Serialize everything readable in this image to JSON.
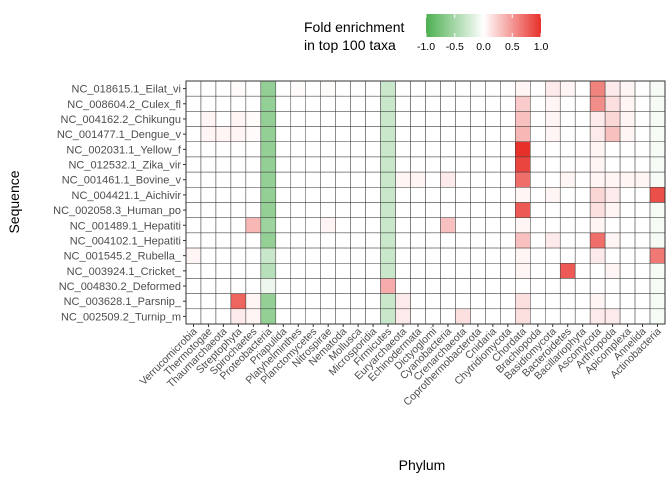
{
  "chart_data": {
    "type": "heatmap",
    "xlabel": "Phylum",
    "ylabel": "Sequence",
    "legend": {
      "title_lines": [
        "Fold enrichment",
        "in top 100 taxa"
      ],
      "position": "top",
      "range": [
        -1.0,
        1.0
      ],
      "ticks": [
        "-1.0",
        "-0.5",
        "0.0",
        "0.5",
        "1.0"
      ],
      "colors": {
        "low": "#4caf50",
        "mid": "#ffffff",
        "high": "#e8302a"
      }
    },
    "x": [
      "Verrucomicrobia",
      "Thermotogae",
      "Thaumarchaeota",
      "Streptophyta",
      "Spirochaetes",
      "Proteobacteria",
      "Priapulida",
      "Platyhelminthes",
      "Planctomycetes",
      "Nitrospirae",
      "Nematoda",
      "Mollusca",
      "Microsporidia",
      "Firmicutes",
      "Euryarchaeota",
      "Echinodermata",
      "Dictyoglomi",
      "Cyanobacteria",
      "Crenarchaeota",
      "Coprothermobacterota",
      "Cnidaria",
      "Chytridiomycota",
      "Chordata",
      "Brachiopoda",
      "Basidiomycota",
      "Bacteroidetes",
      "Bacillariophyta",
      "Ascomycota",
      "Arthropoda",
      "Apicomplexa",
      "Annelida",
      "Actinobacteria"
    ],
    "y": [
      "NC_018615.1_Eilat_vi",
      "NC_008604.2_Culex_fl",
      "NC_004162.2_Chikungu",
      "NC_001477.1_Dengue_v",
      "NC_002031.1_Yellow_f",
      "NC_012532.1_Zika_vir",
      "NC_001461.1_Bovine_v",
      "NC_004421.1_Aichivir",
      "NC_002058.3_Human_po",
      "NC_001489.1_Hepatiti",
      "NC_004102.1_Hepatiti",
      "NC_001545.2_Rubella_",
      "NC_003924.1_Cricket_",
      "NC_004830.2_Deformed",
      "NC_003628.1_Parsnip_",
      "NC_002509.2_Turnip_m"
    ],
    "values": [
      [
        0.0,
        0.0,
        0.0,
        0.02,
        0.0,
        -0.6,
        0.0,
        0.02,
        0.0,
        0.02,
        0.0,
        0.0,
        0.0,
        -0.3,
        0.0,
        0.0,
        0.0,
        0.0,
        0.0,
        0.0,
        0.0,
        0.0,
        0.05,
        0.0,
        0.1,
        0.05,
        0.0,
        0.6,
        0.1,
        0.05,
        0.0,
        -0.05
      ],
      [
        0.0,
        0.0,
        0.0,
        0.0,
        0.0,
        -0.6,
        0.0,
        0.0,
        0.0,
        0.0,
        0.0,
        0.0,
        0.0,
        -0.3,
        0.0,
        0.0,
        0.0,
        0.0,
        0.0,
        0.0,
        0.0,
        0.0,
        0.25,
        0.0,
        0.05,
        0.0,
        0.0,
        0.55,
        0.15,
        0.05,
        0.0,
        -0.05
      ],
      [
        0.0,
        0.05,
        0.0,
        0.05,
        0.02,
        -0.6,
        0.0,
        0.0,
        0.0,
        0.0,
        0.0,
        0.0,
        0.0,
        -0.3,
        0.0,
        0.0,
        0.0,
        0.0,
        0.0,
        0.0,
        0.0,
        0.0,
        0.3,
        0.0,
        0.05,
        0.0,
        0.0,
        0.1,
        0.2,
        0.05,
        0.0,
        -0.05
      ],
      [
        0.0,
        0.05,
        0.05,
        0.05,
        0.02,
        -0.6,
        0.0,
        0.0,
        0.0,
        0.0,
        0.0,
        0.0,
        0.0,
        -0.3,
        0.0,
        0.0,
        0.0,
        0.0,
        0.0,
        0.0,
        0.0,
        0.0,
        0.35,
        0.0,
        0.05,
        0.0,
        0.0,
        0.1,
        0.3,
        0.05,
        0.0,
        -0.05
      ],
      [
        0.0,
        0.0,
        0.0,
        0.0,
        0.0,
        -0.6,
        0.0,
        0.0,
        0.0,
        0.0,
        0.0,
        0.0,
        0.0,
        -0.3,
        0.0,
        0.0,
        0.0,
        0.0,
        0.0,
        0.0,
        0.0,
        0.0,
        1.0,
        0.0,
        0.0,
        0.0,
        0.0,
        0.05,
        0.0,
        0.0,
        0.0,
        -0.05
      ],
      [
        0.0,
        0.0,
        0.0,
        0.0,
        0.0,
        -0.6,
        0.0,
        0.0,
        0.0,
        0.0,
        0.0,
        0.0,
        0.0,
        -0.3,
        0.0,
        0.0,
        0.0,
        0.0,
        0.0,
        0.0,
        0.0,
        0.0,
        0.9,
        0.0,
        0.0,
        0.0,
        0.0,
        0.05,
        0.0,
        0.0,
        0.0,
        -0.05
      ],
      [
        0.0,
        0.0,
        0.0,
        0.0,
        0.0,
        -0.6,
        0.0,
        0.0,
        0.0,
        0.0,
        0.0,
        0.0,
        0.0,
        -0.3,
        0.05,
        0.05,
        0.0,
        0.1,
        0.0,
        0.0,
        0.0,
        0.0,
        0.7,
        0.0,
        0.0,
        0.05,
        0.0,
        0.05,
        0.05,
        0.05,
        0.05,
        -0.05
      ],
      [
        0.0,
        0.0,
        0.0,
        0.0,
        0.0,
        -0.6,
        0.0,
        0.0,
        0.0,
        0.0,
        0.0,
        0.0,
        0.0,
        -0.3,
        0.0,
        0.0,
        0.0,
        0.0,
        0.0,
        0.0,
        0.0,
        0.0,
        0.05,
        0.0,
        0.05,
        0.0,
        0.0,
        0.2,
        0.1,
        0.0,
        0.0,
        0.85
      ],
      [
        0.0,
        0.0,
        0.0,
        0.0,
        0.0,
        -0.6,
        0.0,
        0.0,
        0.0,
        0.0,
        0.0,
        0.0,
        0.0,
        -0.3,
        0.0,
        0.0,
        0.0,
        0.0,
        0.0,
        0.0,
        0.0,
        0.0,
        0.8,
        0.0,
        0.0,
        0.0,
        0.0,
        0.15,
        0.05,
        0.0,
        0.0,
        -0.05
      ],
      [
        0.0,
        0.0,
        0.0,
        0.0,
        0.35,
        -0.55,
        0.0,
        0.0,
        0.0,
        0.05,
        0.0,
        0.0,
        0.0,
        -0.3,
        0.0,
        0.0,
        0.0,
        0.3,
        0.0,
        0.0,
        0.0,
        0.0,
        0.05,
        0.0,
        0.0,
        0.0,
        0.0,
        0.05,
        0.0,
        0.0,
        0.0,
        -0.05
      ],
      [
        0.0,
        0.0,
        0.0,
        0.0,
        0.0,
        -0.6,
        0.0,
        0.0,
        0.0,
        0.0,
        0.0,
        0.0,
        0.0,
        -0.3,
        0.0,
        0.0,
        0.0,
        0.0,
        0.0,
        0.0,
        0.0,
        0.0,
        0.3,
        0.0,
        0.1,
        0.0,
        0.0,
        0.7,
        0.05,
        0.0,
        0.0,
        -0.05
      ],
      [
        0.05,
        0.0,
        0.0,
        0.0,
        0.0,
        -0.3,
        0.0,
        0.0,
        0.0,
        0.0,
        0.0,
        0.0,
        0.0,
        -0.3,
        0.0,
        0.0,
        0.0,
        0.0,
        0.0,
        0.0,
        0.0,
        0.0,
        0.05,
        0.0,
        0.0,
        0.0,
        0.0,
        0.1,
        0.0,
        0.0,
        0.0,
        0.65
      ],
      [
        0.0,
        0.0,
        0.0,
        0.0,
        0.0,
        -0.4,
        0.0,
        0.0,
        0.0,
        0.0,
        0.0,
        0.0,
        0.0,
        -0.3,
        0.0,
        0.0,
        0.0,
        0.0,
        0.0,
        0.0,
        0.0,
        0.0,
        0.05,
        0.0,
        0.0,
        0.8,
        0.0,
        0.0,
        0.05,
        0.0,
        0.0,
        -0.05
      ],
      [
        0.0,
        0.0,
        0.0,
        0.0,
        0.0,
        -0.1,
        0.0,
        0.0,
        0.0,
        0.0,
        0.0,
        0.0,
        0.0,
        0.4,
        0.0,
        0.0,
        0.0,
        0.0,
        0.0,
        0.0,
        0.0,
        0.0,
        0.0,
        0.0,
        0.0,
        0.0,
        0.0,
        0.0,
        0.0,
        0.0,
        0.0,
        -0.05
      ],
      [
        0.0,
        0.0,
        0.0,
        0.75,
        0.05,
        -0.6,
        0.0,
        0.0,
        0.0,
        0.0,
        0.0,
        0.0,
        0.0,
        -0.3,
        0.1,
        0.0,
        0.0,
        0.0,
        0.0,
        0.0,
        0.0,
        0.0,
        0.15,
        0.0,
        0.0,
        0.0,
        0.0,
        0.05,
        0.0,
        0.0,
        0.0,
        -0.05
      ],
      [
        0.0,
        0.0,
        0.0,
        0.1,
        0.05,
        -0.6,
        0.0,
        0.0,
        0.0,
        0.0,
        0.0,
        0.0,
        0.0,
        -0.3,
        0.1,
        0.0,
        0.0,
        0.0,
        0.15,
        0.0,
        0.0,
        0.0,
        0.15,
        0.0,
        0.0,
        0.0,
        0.0,
        0.1,
        0.1,
        0.0,
        0.0,
        -0.05
      ]
    ]
  }
}
